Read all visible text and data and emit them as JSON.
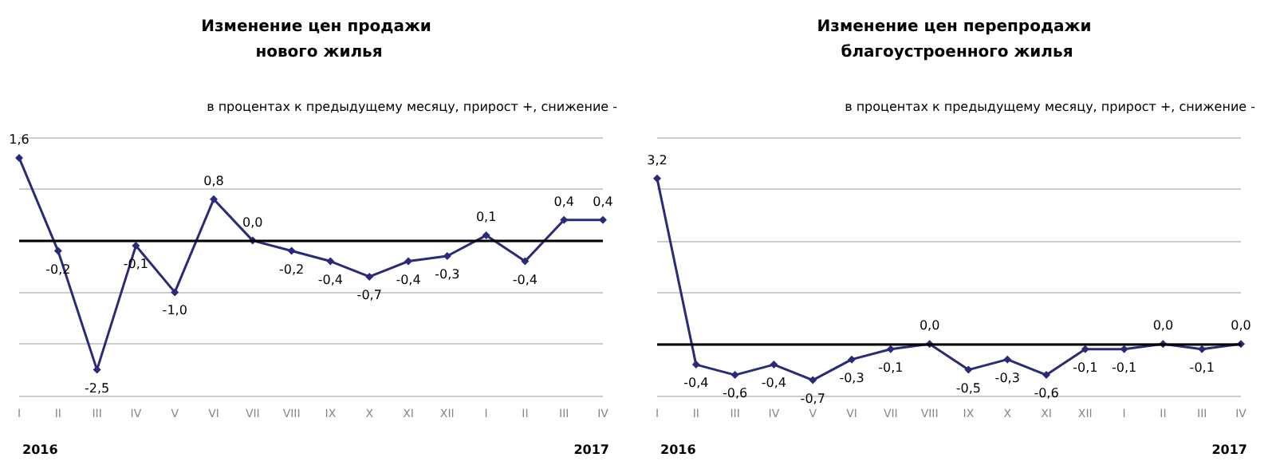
{
  "chart_data": [
    {
      "type": "line",
      "title": "Изменение цен продажи нового жилья",
      "subtitle": "в процентах к предыдущему месяцу, прирост +, снижение -",
      "categories": [
        "I",
        "II",
        "III",
        "IV",
        "V",
        "VI",
        "VII",
        "VIII",
        "IX",
        "X",
        "XI",
        "XII",
        "I",
        "II",
        "III",
        "IV"
      ],
      "series": [
        {
          "color": "#2a2a7a",
          "values": [
            1.6,
            -0.2,
            -2.5,
            -0.1,
            -1.0,
            0.8,
            0.0,
            -0.2,
            -0.4,
            -0.7,
            -0.4,
            -0.3,
            0.1,
            -0.4,
            0.4,
            0.4
          ],
          "value_labels": [
            "1,6",
            "-0,2",
            "-2,5",
            "-0,1",
            "-1,0",
            "0,8",
            "0,0",
            "-0,2",
            "-0,4",
            "-0,7",
            "-0,4",
            "-0,3",
            "0,1",
            "-0,4",
            "0,4",
            "0,4"
          ]
        }
      ],
      "annotations": [
        "2016",
        "2017"
      ],
      "ref_lines": [
        {
          "axis": "y",
          "value": 0,
          "color": "#000000"
        }
      ],
      "grid": "y",
      "tick_labels": "x",
      "marker": "diamond",
      "line_style": "solid"
    },
    {
      "type": "line",
      "title": "Изменение цен перепродажи благоустроенного жилья",
      "subtitle": "в процентах к предыдущему месяцу, прирост +, снижение -",
      "categories": [
        "I",
        "II",
        "III",
        "IV",
        "V",
        "VI",
        "VII",
        "VIII",
        "IX",
        "X",
        "XI",
        "XII",
        "I",
        "II",
        "III",
        "IV"
      ],
      "series": [
        {
          "color": "#2a2a7a",
          "values": [
            3.2,
            -0.4,
            -0.6,
            -0.4,
            -0.7,
            -0.3,
            -0.1,
            0.0,
            -0.5,
            -0.3,
            -0.6,
            -0.1,
            -0.1,
            0.0,
            -0.1,
            0.0
          ],
          "value_labels": [
            "3,2",
            "-0,4",
            "-0,6",
            "-0,4",
            "-0,7",
            "-0,3",
            "-0,1",
            "0,0",
            "-0,5",
            "-0,3",
            "-0,6",
            "-0,1",
            "-0,1",
            "0,0",
            "-0,1",
            "0,0"
          ]
        }
      ],
      "annotations": [
        "2016",
        "2017"
      ],
      "ref_lines": [
        {
          "axis": "y",
          "value": 0,
          "color": "#000000"
        }
      ],
      "grid": "y",
      "tick_labels": "x",
      "marker": "diamond",
      "line_style": "solid"
    }
  ]
}
